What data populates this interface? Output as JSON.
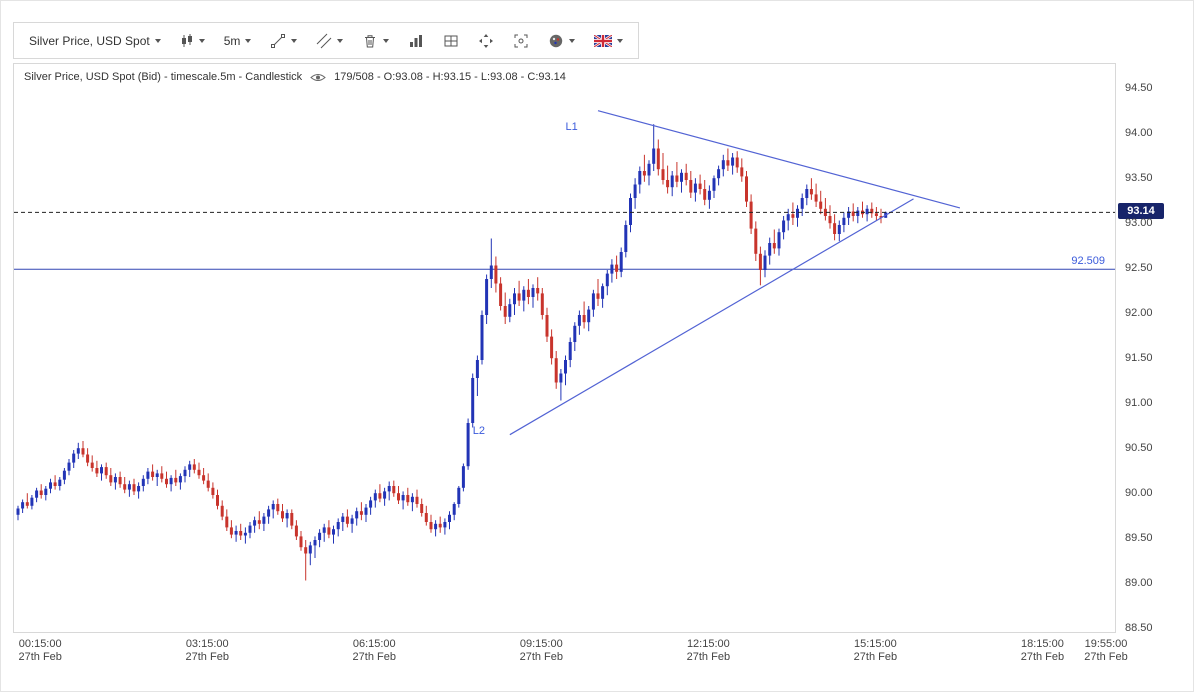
{
  "toolbar": {
    "symbol": "Silver Price, USD Spot",
    "timeframe": "5m",
    "icons": {
      "chart_type": "candlestick-icon",
      "trendline": "trendline-icon",
      "drawing": "channel-lines-icon",
      "delete": "trash-icon",
      "indicators": "histogram-icon",
      "grid": "grid-layout-icon",
      "fullscreen": "expand-arrows-icon",
      "snapshot": "frame-icon",
      "theme": "palette-icon",
      "language": "uk-flag-icon",
      "visibility": "eye-icon",
      "dropdown": "chevron-down-icon"
    }
  },
  "chart_header": {
    "title": "Silver Price, USD Spot (Bid) - timescale.5m - Candlestick",
    "ohlc": "179/508 - O:93.08 - H:93.15 - L:93.08 - C:93.14"
  },
  "colors": {
    "up": "#2234b6",
    "down": "#c8342c",
    "trend": "#5263d4",
    "support": "#3246b4",
    "label_blue": "#3b5bdb",
    "badge_bg": "#17246a",
    "badge_text": "#ffffff",
    "dashed": "#222222",
    "axis_text": "#444444"
  },
  "chart_data": {
    "type": "candlestick",
    "title": "Silver Price, USD Spot (Bid) - timescale.5m - Candlestick",
    "symbol": "Silver Price, USD Spot (Bid)",
    "timeframe": "5m",
    "grid": false,
    "current_bar": {
      "index_label": "179/508",
      "o": 93.08,
      "h": 93.15,
      "l": 93.08,
      "c": 93.14
    },
    "last_price": 93.14,
    "last_price_label": "93.14",
    "support_line": {
      "price": 92.509,
      "label": "92.509"
    },
    "trend_lines": [
      {
        "label": "L1",
        "from": {
          "i": 125,
          "p": 94.27
        },
        "to": {
          "i": 203,
          "p": 93.19
        },
        "label_pos": {
          "i": 118,
          "p": 94.1
        }
      },
      {
        "label": "L2",
        "from": {
          "i": 106,
          "p": 90.67
        },
        "to": {
          "i": 193,
          "p": 93.29
        },
        "label_pos": {
          "i": 98,
          "p": 90.72
        }
      }
    ],
    "y_axis": {
      "min": 88.5,
      "max": 94.5,
      "step": 0.5,
      "labels": [
        "94.50",
        "94.00",
        "93.50",
        "93.00",
        "92.50",
        "92.00",
        "91.50",
        "91.00",
        "90.50",
        "90.00",
        "89.50",
        "89.00",
        "88.50"
      ]
    },
    "x_axis": {
      "ticks": [
        {
          "i": 5,
          "time": "00:15:00",
          "date": "27th Feb"
        },
        {
          "i": 41,
          "time": "03:15:00",
          "date": "27th Feb"
        },
        {
          "i": 77,
          "time": "06:15:00",
          "date": "27th Feb"
        },
        {
          "i": 113,
          "time": "09:15:00",
          "date": "27th Feb"
        },
        {
          "i": 149,
          "time": "12:15:00",
          "date": "27th Feb"
        },
        {
          "i": 185,
          "time": "15:15:00",
          "date": "27th Feb"
        },
        {
          "i": 221,
          "time": "18:15:00",
          "date": "27th Feb"
        },
        {
          "i": 241,
          "time": "19:55:00",
          "date": "27th Feb"
        }
      ]
    },
    "candles": [
      [
        89.78,
        89.88,
        89.72,
        89.85
      ],
      [
        89.85,
        89.95,
        89.8,
        89.92
      ],
      [
        89.92,
        90.02,
        89.85,
        89.88
      ],
      [
        89.88,
        90.0,
        89.84,
        89.97
      ],
      [
        89.97,
        90.08,
        89.92,
        90.05
      ],
      [
        90.05,
        90.12,
        89.96,
        90.0
      ],
      [
        90.0,
        90.1,
        89.94,
        90.07
      ],
      [
        90.07,
        90.18,
        90.02,
        90.14
      ],
      [
        90.14,
        90.22,
        90.06,
        90.1
      ],
      [
        90.1,
        90.2,
        90.05,
        90.17
      ],
      [
        90.17,
        90.3,
        90.12,
        90.27
      ],
      [
        90.27,
        90.4,
        90.22,
        90.36
      ],
      [
        90.36,
        90.5,
        90.3,
        90.46
      ],
      [
        90.46,
        90.58,
        90.4,
        90.52
      ],
      [
        90.52,
        90.6,
        90.42,
        90.45
      ],
      [
        90.45,
        90.52,
        90.32,
        90.36
      ],
      [
        90.36,
        90.44,
        90.26,
        90.3
      ],
      [
        90.3,
        90.38,
        90.2,
        90.24
      ],
      [
        90.24,
        90.34,
        90.16,
        90.31
      ],
      [
        90.31,
        90.36,
        90.18,
        90.22
      ],
      [
        90.22,
        90.3,
        90.1,
        90.14
      ],
      [
        90.14,
        90.24,
        90.06,
        90.2
      ],
      [
        90.2,
        90.26,
        90.08,
        90.12
      ],
      [
        90.12,
        90.2,
        90.02,
        90.06
      ],
      [
        90.06,
        90.16,
        89.98,
        90.12
      ],
      [
        90.12,
        90.18,
        90.0,
        90.04
      ],
      [
        90.04,
        90.14,
        89.96,
        90.1
      ],
      [
        90.1,
        90.22,
        90.04,
        90.18
      ],
      [
        90.18,
        90.3,
        90.12,
        90.26
      ],
      [
        90.26,
        90.34,
        90.16,
        90.2
      ],
      [
        90.2,
        90.28,
        90.1,
        90.24
      ],
      [
        90.24,
        90.32,
        90.14,
        90.18
      ],
      [
        90.18,
        90.26,
        90.08,
        90.12
      ],
      [
        90.12,
        90.22,
        90.04,
        90.19
      ],
      [
        90.19,
        90.28,
        90.1,
        90.14
      ],
      [
        90.14,
        90.24,
        90.06,
        90.21
      ],
      [
        90.21,
        90.32,
        90.14,
        90.28
      ],
      [
        90.28,
        90.38,
        90.2,
        90.34
      ],
      [
        90.34,
        90.4,
        90.24,
        90.28
      ],
      [
        90.28,
        90.36,
        90.18,
        90.22
      ],
      [
        90.22,
        90.3,
        90.12,
        90.16
      ],
      [
        90.16,
        90.24,
        90.04,
        90.08
      ],
      [
        90.08,
        90.14,
        89.96,
        90.0
      ],
      [
        90.0,
        90.06,
        89.84,
        89.88
      ],
      [
        89.88,
        89.94,
        89.72,
        89.76
      ],
      [
        89.76,
        89.84,
        89.6,
        89.64
      ],
      [
        89.64,
        89.72,
        89.52,
        89.56
      ],
      [
        89.56,
        89.66,
        89.48,
        89.6
      ],
      [
        89.6,
        89.68,
        89.5,
        89.55
      ],
      [
        89.55,
        89.64,
        89.46,
        89.58
      ],
      [
        89.58,
        89.7,
        89.52,
        89.66
      ],
      [
        89.66,
        89.76,
        89.58,
        89.72
      ],
      [
        89.72,
        89.82,
        89.62,
        89.68
      ],
      [
        89.68,
        89.8,
        89.6,
        89.76
      ],
      [
        89.76,
        89.88,
        89.68,
        89.84
      ],
      [
        89.84,
        89.94,
        89.74,
        89.9
      ],
      [
        89.9,
        89.96,
        89.78,
        89.82
      ],
      [
        89.82,
        89.9,
        89.7,
        89.74
      ],
      [
        89.74,
        89.84,
        89.64,
        89.8
      ],
      [
        89.8,
        89.84,
        89.62,
        89.66
      ],
      [
        89.66,
        89.72,
        89.5,
        89.54
      ],
      [
        89.54,
        89.6,
        89.38,
        89.42
      ],
      [
        89.42,
        89.5,
        89.05,
        89.35
      ],
      [
        89.35,
        89.48,
        89.22,
        89.44
      ],
      [
        89.44,
        89.54,
        89.3,
        89.5
      ],
      [
        89.5,
        89.62,
        89.42,
        89.58
      ],
      [
        89.58,
        89.68,
        89.48,
        89.64
      ],
      [
        89.64,
        89.72,
        89.52,
        89.56
      ],
      [
        89.56,
        89.66,
        89.46,
        89.62
      ],
      [
        89.62,
        89.74,
        89.54,
        89.7
      ],
      [
        89.7,
        89.8,
        89.6,
        89.76
      ],
      [
        89.76,
        89.84,
        89.64,
        89.68
      ],
      [
        89.68,
        89.78,
        89.58,
        89.74
      ],
      [
        89.74,
        89.86,
        89.66,
        89.82
      ],
      [
        89.82,
        89.92,
        89.72,
        89.78
      ],
      [
        89.78,
        89.9,
        89.7,
        89.86
      ],
      [
        89.86,
        89.98,
        89.78,
        89.94
      ],
      [
        89.94,
        90.06,
        89.86,
        90.02
      ],
      [
        90.02,
        90.12,
        89.92,
        89.96
      ],
      [
        89.96,
        90.08,
        89.88,
        90.04
      ],
      [
        90.04,
        90.15,
        89.94,
        90.1
      ],
      [
        90.1,
        90.16,
        89.98,
        90.02
      ],
      [
        90.02,
        90.1,
        89.9,
        89.94
      ],
      [
        89.94,
        90.04,
        89.84,
        90.0
      ],
      [
        90.0,
        90.08,
        89.88,
        89.92
      ],
      [
        89.92,
        90.02,
        89.82,
        89.98
      ],
      [
        89.98,
        90.06,
        89.86,
        89.9
      ],
      [
        89.9,
        89.96,
        89.76,
        89.8
      ],
      [
        89.8,
        89.88,
        89.66,
        89.7
      ],
      [
        89.7,
        89.78,
        89.58,
        89.62
      ],
      [
        89.62,
        89.72,
        89.54,
        89.68
      ],
      [
        89.68,
        89.76,
        89.58,
        89.64
      ],
      [
        89.64,
        89.74,
        89.56,
        89.7
      ],
      [
        89.7,
        89.82,
        89.62,
        89.78
      ],
      [
        89.78,
        89.92,
        89.72,
        89.9
      ],
      [
        89.9,
        90.1,
        89.86,
        90.08
      ],
      [
        90.08,
        90.35,
        90.04,
        90.32
      ],
      [
        90.32,
        90.85,
        90.28,
        90.8
      ],
      [
        90.8,
        91.35,
        90.75,
        91.3
      ],
      [
        91.3,
        91.55,
        91.1,
        91.5
      ],
      [
        91.5,
        92.05,
        91.45,
        92.0
      ],
      [
        92.0,
        92.45,
        91.9,
        92.4
      ],
      [
        92.4,
        92.85,
        92.3,
        92.55
      ],
      [
        92.55,
        92.65,
        92.25,
        92.35
      ],
      [
        92.35,
        92.42,
        92.05,
        92.1
      ],
      [
        92.1,
        92.25,
        91.9,
        91.98
      ],
      [
        91.98,
        92.18,
        91.92,
        92.12
      ],
      [
        92.12,
        92.3,
        92.0,
        92.24
      ],
      [
        92.24,
        92.38,
        92.1,
        92.16
      ],
      [
        92.16,
        92.32,
        92.04,
        92.28
      ],
      [
        92.28,
        92.4,
        92.12,
        92.2
      ],
      [
        92.2,
        92.34,
        92.08,
        92.3
      ],
      [
        92.3,
        92.42,
        92.16,
        92.24
      ],
      [
        92.24,
        92.3,
        91.95,
        92.0
      ],
      [
        92.0,
        92.08,
        91.7,
        91.76
      ],
      [
        91.76,
        91.84,
        91.45,
        91.52
      ],
      [
        91.52,
        91.6,
        91.18,
        91.25
      ],
      [
        91.25,
        91.4,
        91.05,
        91.35
      ],
      [
        91.35,
        91.55,
        91.22,
        91.5
      ],
      [
        91.5,
        91.75,
        91.42,
        91.7
      ],
      [
        91.7,
        91.92,
        91.6,
        91.88
      ],
      [
        91.88,
        92.05,
        91.78,
        92.0
      ],
      [
        92.0,
        92.15,
        91.85,
        91.92
      ],
      [
        91.92,
        92.1,
        91.82,
        92.06
      ],
      [
        92.06,
        92.28,
        91.98,
        92.24
      ],
      [
        92.24,
        92.4,
        92.1,
        92.18
      ],
      [
        92.18,
        92.35,
        92.08,
        92.32
      ],
      [
        92.32,
        92.5,
        92.22,
        92.46
      ],
      [
        92.46,
        92.62,
        92.36,
        92.56
      ],
      [
        92.56,
        92.66,
        92.4,
        92.48
      ],
      [
        92.48,
        92.75,
        92.42,
        92.7
      ],
      [
        92.7,
        93.05,
        92.64,
        93.0
      ],
      [
        93.0,
        93.35,
        92.92,
        93.3
      ],
      [
        93.3,
        93.52,
        93.18,
        93.45
      ],
      [
        93.45,
        93.65,
        93.35,
        93.6
      ],
      [
        93.6,
        93.78,
        93.48,
        93.55
      ],
      [
        93.55,
        93.72,
        93.44,
        93.68
      ],
      [
        93.68,
        94.12,
        93.6,
        93.85
      ],
      [
        93.85,
        93.95,
        93.55,
        93.62
      ],
      [
        93.62,
        93.8,
        93.45,
        93.5
      ],
      [
        93.5,
        93.66,
        93.35,
        93.42
      ],
      [
        93.42,
        93.6,
        93.32,
        93.55
      ],
      [
        93.55,
        93.7,
        93.42,
        93.48
      ],
      [
        93.48,
        93.62,
        93.36,
        93.58
      ],
      [
        93.58,
        93.68,
        93.44,
        93.5
      ],
      [
        93.5,
        93.6,
        93.3,
        93.36
      ],
      [
        93.36,
        93.52,
        93.26,
        93.46
      ],
      [
        93.46,
        93.56,
        93.34,
        93.4
      ],
      [
        93.4,
        93.5,
        93.22,
        93.28
      ],
      [
        93.28,
        93.44,
        93.18,
        93.38
      ],
      [
        93.38,
        93.55,
        93.3,
        93.52
      ],
      [
        93.52,
        93.66,
        93.44,
        93.62
      ],
      [
        93.62,
        93.78,
        93.54,
        93.72
      ],
      [
        93.72,
        93.85,
        93.6,
        93.66
      ],
      [
        93.66,
        93.8,
        93.56,
        93.75
      ],
      [
        93.75,
        93.82,
        93.58,
        93.64
      ],
      [
        93.64,
        93.74,
        93.48,
        93.54
      ],
      [
        93.54,
        93.6,
        93.2,
        93.26
      ],
      [
        93.26,
        93.34,
        92.9,
        92.96
      ],
      [
        92.96,
        93.04,
        92.6,
        92.68
      ],
      [
        92.68,
        92.76,
        92.33,
        92.5
      ],
      [
        92.5,
        92.72,
        92.42,
        92.66
      ],
      [
        92.66,
        92.86,
        92.56,
        92.8
      ],
      [
        92.8,
        92.95,
        92.68,
        92.74
      ],
      [
        92.74,
        92.96,
        92.66,
        92.92
      ],
      [
        92.92,
        93.1,
        92.84,
        93.05
      ],
      [
        93.05,
        93.18,
        92.94,
        93.12
      ],
      [
        93.12,
        93.25,
        93.0,
        93.08
      ],
      [
        93.08,
        93.22,
        92.98,
        93.18
      ],
      [
        93.18,
        93.35,
        93.1,
        93.3
      ],
      [
        93.3,
        93.45,
        93.22,
        93.4
      ],
      [
        93.4,
        93.52,
        93.28,
        93.34
      ],
      [
        93.34,
        93.46,
        93.2,
        93.26
      ],
      [
        93.26,
        93.38,
        93.12,
        93.18
      ],
      [
        93.18,
        93.3,
        93.05,
        93.1
      ],
      [
        93.1,
        93.22,
        92.96,
        93.02
      ],
      [
        93.02,
        93.12,
        92.83,
        92.9
      ],
      [
        92.9,
        93.05,
        92.82,
        93.0
      ],
      [
        93.0,
        93.14,
        92.92,
        93.08
      ],
      [
        93.08,
        93.2,
        93.0,
        93.15
      ],
      [
        93.15,
        93.24,
        93.04,
        93.1
      ],
      [
        93.1,
        93.2,
        93.02,
        93.16
      ],
      [
        93.16,
        93.26,
        93.08,
        93.12
      ],
      [
        93.12,
        93.22,
        93.04,
        93.18
      ],
      [
        93.18,
        93.25,
        93.08,
        93.13
      ],
      [
        93.13,
        93.2,
        93.05,
        93.1
      ],
      [
        93.1,
        93.18,
        93.02,
        93.08
      ],
      [
        93.08,
        93.15,
        93.08,
        93.14
      ]
    ]
  }
}
